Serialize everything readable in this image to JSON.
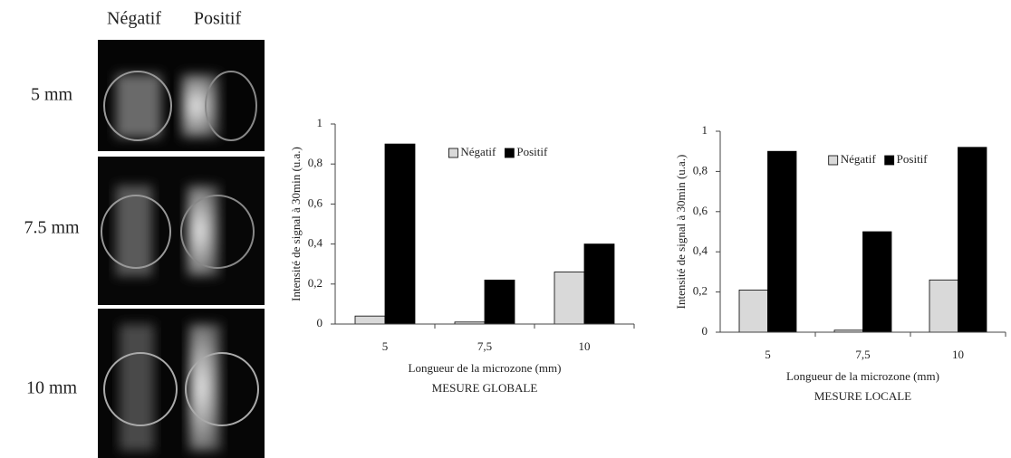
{
  "photo_panel": {
    "column_labels": [
      "Négatif",
      "Positif"
    ],
    "row_labels": [
      "5 mm",
      "7.5 mm",
      "10 mm"
    ]
  },
  "chart_data": [
    {
      "type": "bar",
      "y_label": "Intensité de signal à 30min (u.a.)",
      "x_label": "Longueur de la microzone (mm)",
      "caption": "MESURE GLOBALE",
      "categories": [
        "5",
        "7,5",
        "10"
      ],
      "series": [
        {
          "name": "Négatif",
          "color": "#d9d9d9",
          "values": [
            0.04,
            0.01,
            0.26
          ]
        },
        {
          "name": "Positif",
          "color": "#000000",
          "values": [
            0.9,
            0.22,
            0.4
          ]
        }
      ],
      "ylim": [
        0,
        1
      ],
      "yticks": [
        0,
        {
          "value": 0.2,
          "label": "0,2"
        },
        {
          "value": 0.4,
          "label": "0,4"
        },
        {
          "value": 0.6,
          "label": "0,6"
        },
        {
          "value": 0.8,
          "label": "0,8"
        },
        1
      ],
      "grid": false,
      "legend": "top-right"
    },
    {
      "type": "bar",
      "y_label": "Intensité de signal à 30min (u.a.)",
      "x_label": "Longueur de la microzone (mm)",
      "caption": "MESURE LOCALE",
      "categories": [
        "5",
        "7,5",
        "10"
      ],
      "series": [
        {
          "name": "Négatif",
          "color": "#d9d9d9",
          "values": [
            0.21,
            0.01,
            0.26
          ]
        },
        {
          "name": "Positif",
          "color": "#000000",
          "values": [
            0.9,
            0.5,
            0.92
          ]
        }
      ],
      "ylim": [
        0,
        1
      ],
      "yticks": [
        0,
        {
          "value": 0.2,
          "label": "0,2"
        },
        {
          "value": 0.4,
          "label": "0,4"
        },
        {
          "value": 0.6,
          "label": "0,6"
        },
        {
          "value": 0.8,
          "label": "0,8"
        },
        1
      ],
      "grid": false,
      "legend": "top-right"
    }
  ]
}
